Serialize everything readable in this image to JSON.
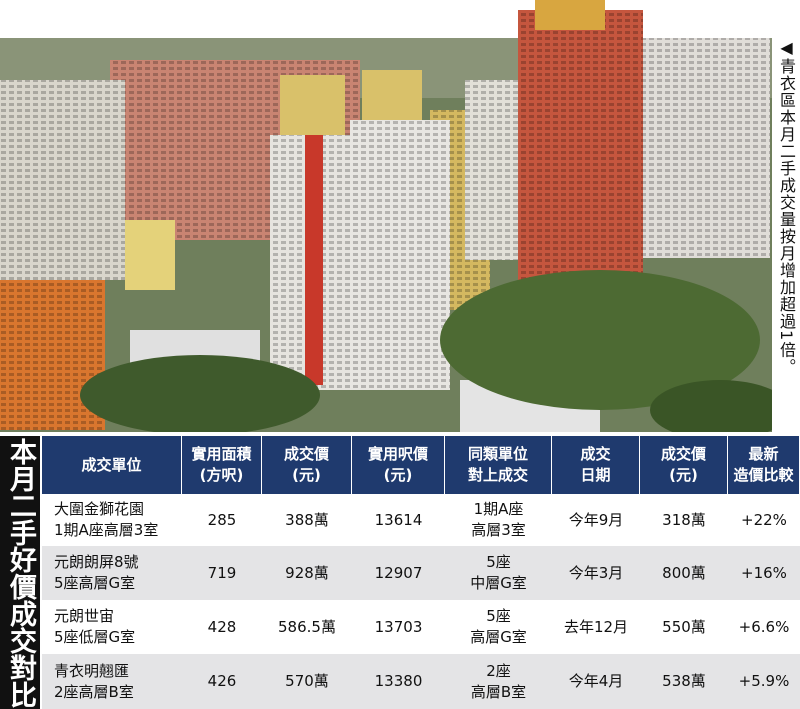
{
  "caption": "◀青衣區本月二手成交量按月增加超過1倍。",
  "side_title": "本月二手好價成交對比",
  "table": {
    "header": [
      [
        "成交單位"
      ],
      [
        "實用面積",
        "(方呎)"
      ],
      [
        "成交價",
        "(元)"
      ],
      [
        "實用呎價",
        "(元)"
      ],
      [
        "同類單位",
        "對上成交"
      ],
      [
        "成交",
        "日期"
      ],
      [
        "成交價",
        "(元)"
      ],
      [
        "最新",
        "造價比較"
      ]
    ],
    "rows": [
      [
        [
          "大圍金獅花園",
          "1期A座高層3室"
        ],
        [
          "285"
        ],
        [
          "388萬"
        ],
        [
          "13614"
        ],
        [
          "1期A座",
          "高層3室"
        ],
        [
          "今年9月"
        ],
        [
          "318萬"
        ],
        [
          "+22%"
        ]
      ],
      [
        [
          "元朗朗屏8號",
          "5座高層G室"
        ],
        [
          "719"
        ],
        [
          "928萬"
        ],
        [
          "12907"
        ],
        [
          "5座",
          "中層G室"
        ],
        [
          "今年3月"
        ],
        [
          "800萬"
        ],
        [
          "+16%"
        ]
      ],
      [
        [
          "元朗世宙",
          "5座低層G室"
        ],
        [
          "428"
        ],
        [
          "586.5萬"
        ],
        [
          "13703"
        ],
        [
          "5座",
          "高層G室"
        ],
        [
          "去年12月"
        ],
        [
          "550萬"
        ],
        [
          "+6.6%"
        ]
      ],
      [
        [
          "青衣明翹匯",
          "2座高層B室"
        ],
        [
          "426"
        ],
        [
          "570萬"
        ],
        [
          "13380"
        ],
        [
          "2座",
          "高層B室"
        ],
        [
          "今年4月"
        ],
        [
          "538萬"
        ],
        [
          "+5.9%"
        ]
      ]
    ]
  }
}
